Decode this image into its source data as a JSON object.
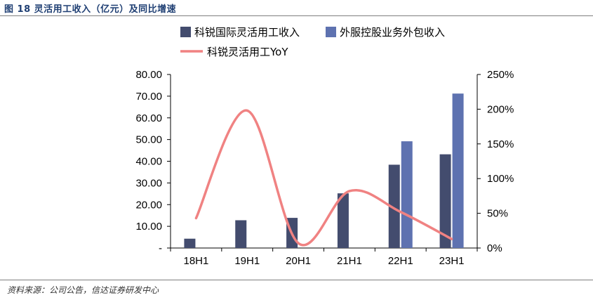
{
  "figure": {
    "title": "图 18  灵活用工收入（亿元）及同比增速",
    "source": "资料来源：公司公告，信达证券研发中心"
  },
  "colors": {
    "bar1": "#434c6e",
    "bar2": "#5e72b0",
    "line": "#f08282",
    "title": "#1f3f73"
  },
  "chart_data": {
    "type": "bar",
    "categories": [
      "18H1",
      "19H1",
      "20H1",
      "21H1",
      "22H1",
      "23H1"
    ],
    "series": [
      {
        "name": "科锐国际灵活用工收入",
        "type": "bar",
        "axis": "left",
        "values": [
          4.3,
          12.8,
          13.9,
          25.2,
          38.4,
          43.2
        ]
      },
      {
        "name": "外服控股业务外包收入",
        "type": "bar",
        "axis": "left",
        "values": [
          null,
          null,
          null,
          null,
          49.2,
          71.2
        ]
      },
      {
        "name": "科锐灵活用工YoY",
        "type": "line",
        "axis": "right",
        "values": [
          0.43,
          1.98,
          0.07,
          0.82,
          0.52,
          0.13
        ]
      }
    ],
    "y_left": {
      "ylim": [
        0,
        80
      ],
      "ticks": [
        "-",
        "10.00",
        "20.00",
        "30.00",
        "40.00",
        "50.00",
        "60.00",
        "70.00",
        "80.00"
      ]
    },
    "y_right": {
      "ylim": [
        0,
        2.5
      ],
      "ticks": [
        "0%",
        "50%",
        "100%",
        "150%",
        "200%",
        "250%"
      ]
    },
    "grid": false,
    "legend": "top"
  }
}
